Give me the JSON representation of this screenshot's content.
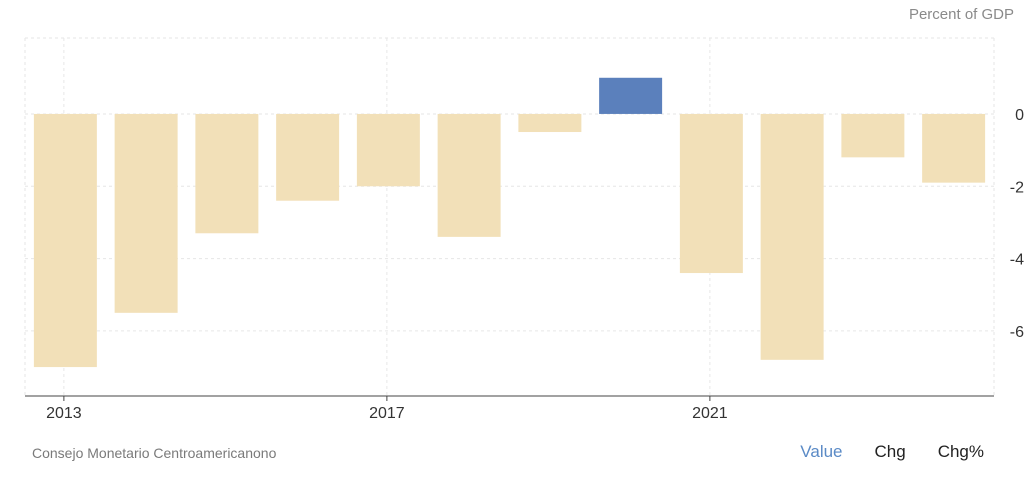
{
  "unit_label": "Percent of GDP",
  "source": "Consejo Monetario Centroamericanono",
  "tabs": [
    {
      "label": "Value",
      "active": true
    },
    {
      "label": "Chg",
      "active": false
    },
    {
      "label": "Chg%",
      "active": false
    }
  ],
  "colors": {
    "negative": "#f2e0b8",
    "positive": "#5b80bc",
    "grid": "#e6e6e6",
    "axis": "#444444"
  },
  "chart_data": {
    "type": "bar",
    "x": [
      2013,
      2014,
      2015,
      2016,
      2017,
      2018,
      2019,
      2020,
      2021,
      2022,
      2023,
      2024
    ],
    "values": [
      -7.0,
      -5.5,
      -3.3,
      -2.4,
      -2.0,
      -3.4,
      -0.5,
      1.0,
      -4.4,
      -6.8,
      -1.2,
      -1.9
    ],
    "x_tick_labels": [
      "2013",
      "2017",
      "2021"
    ],
    "y_ticks": [
      0,
      -2,
      -4,
      -6
    ],
    "ylim": [
      -7.8,
      2.1
    ],
    "ylabel": "Percent of GDP",
    "xlabel": "",
    "title": "",
    "grid": true,
    "y_axis_position": "right"
  }
}
